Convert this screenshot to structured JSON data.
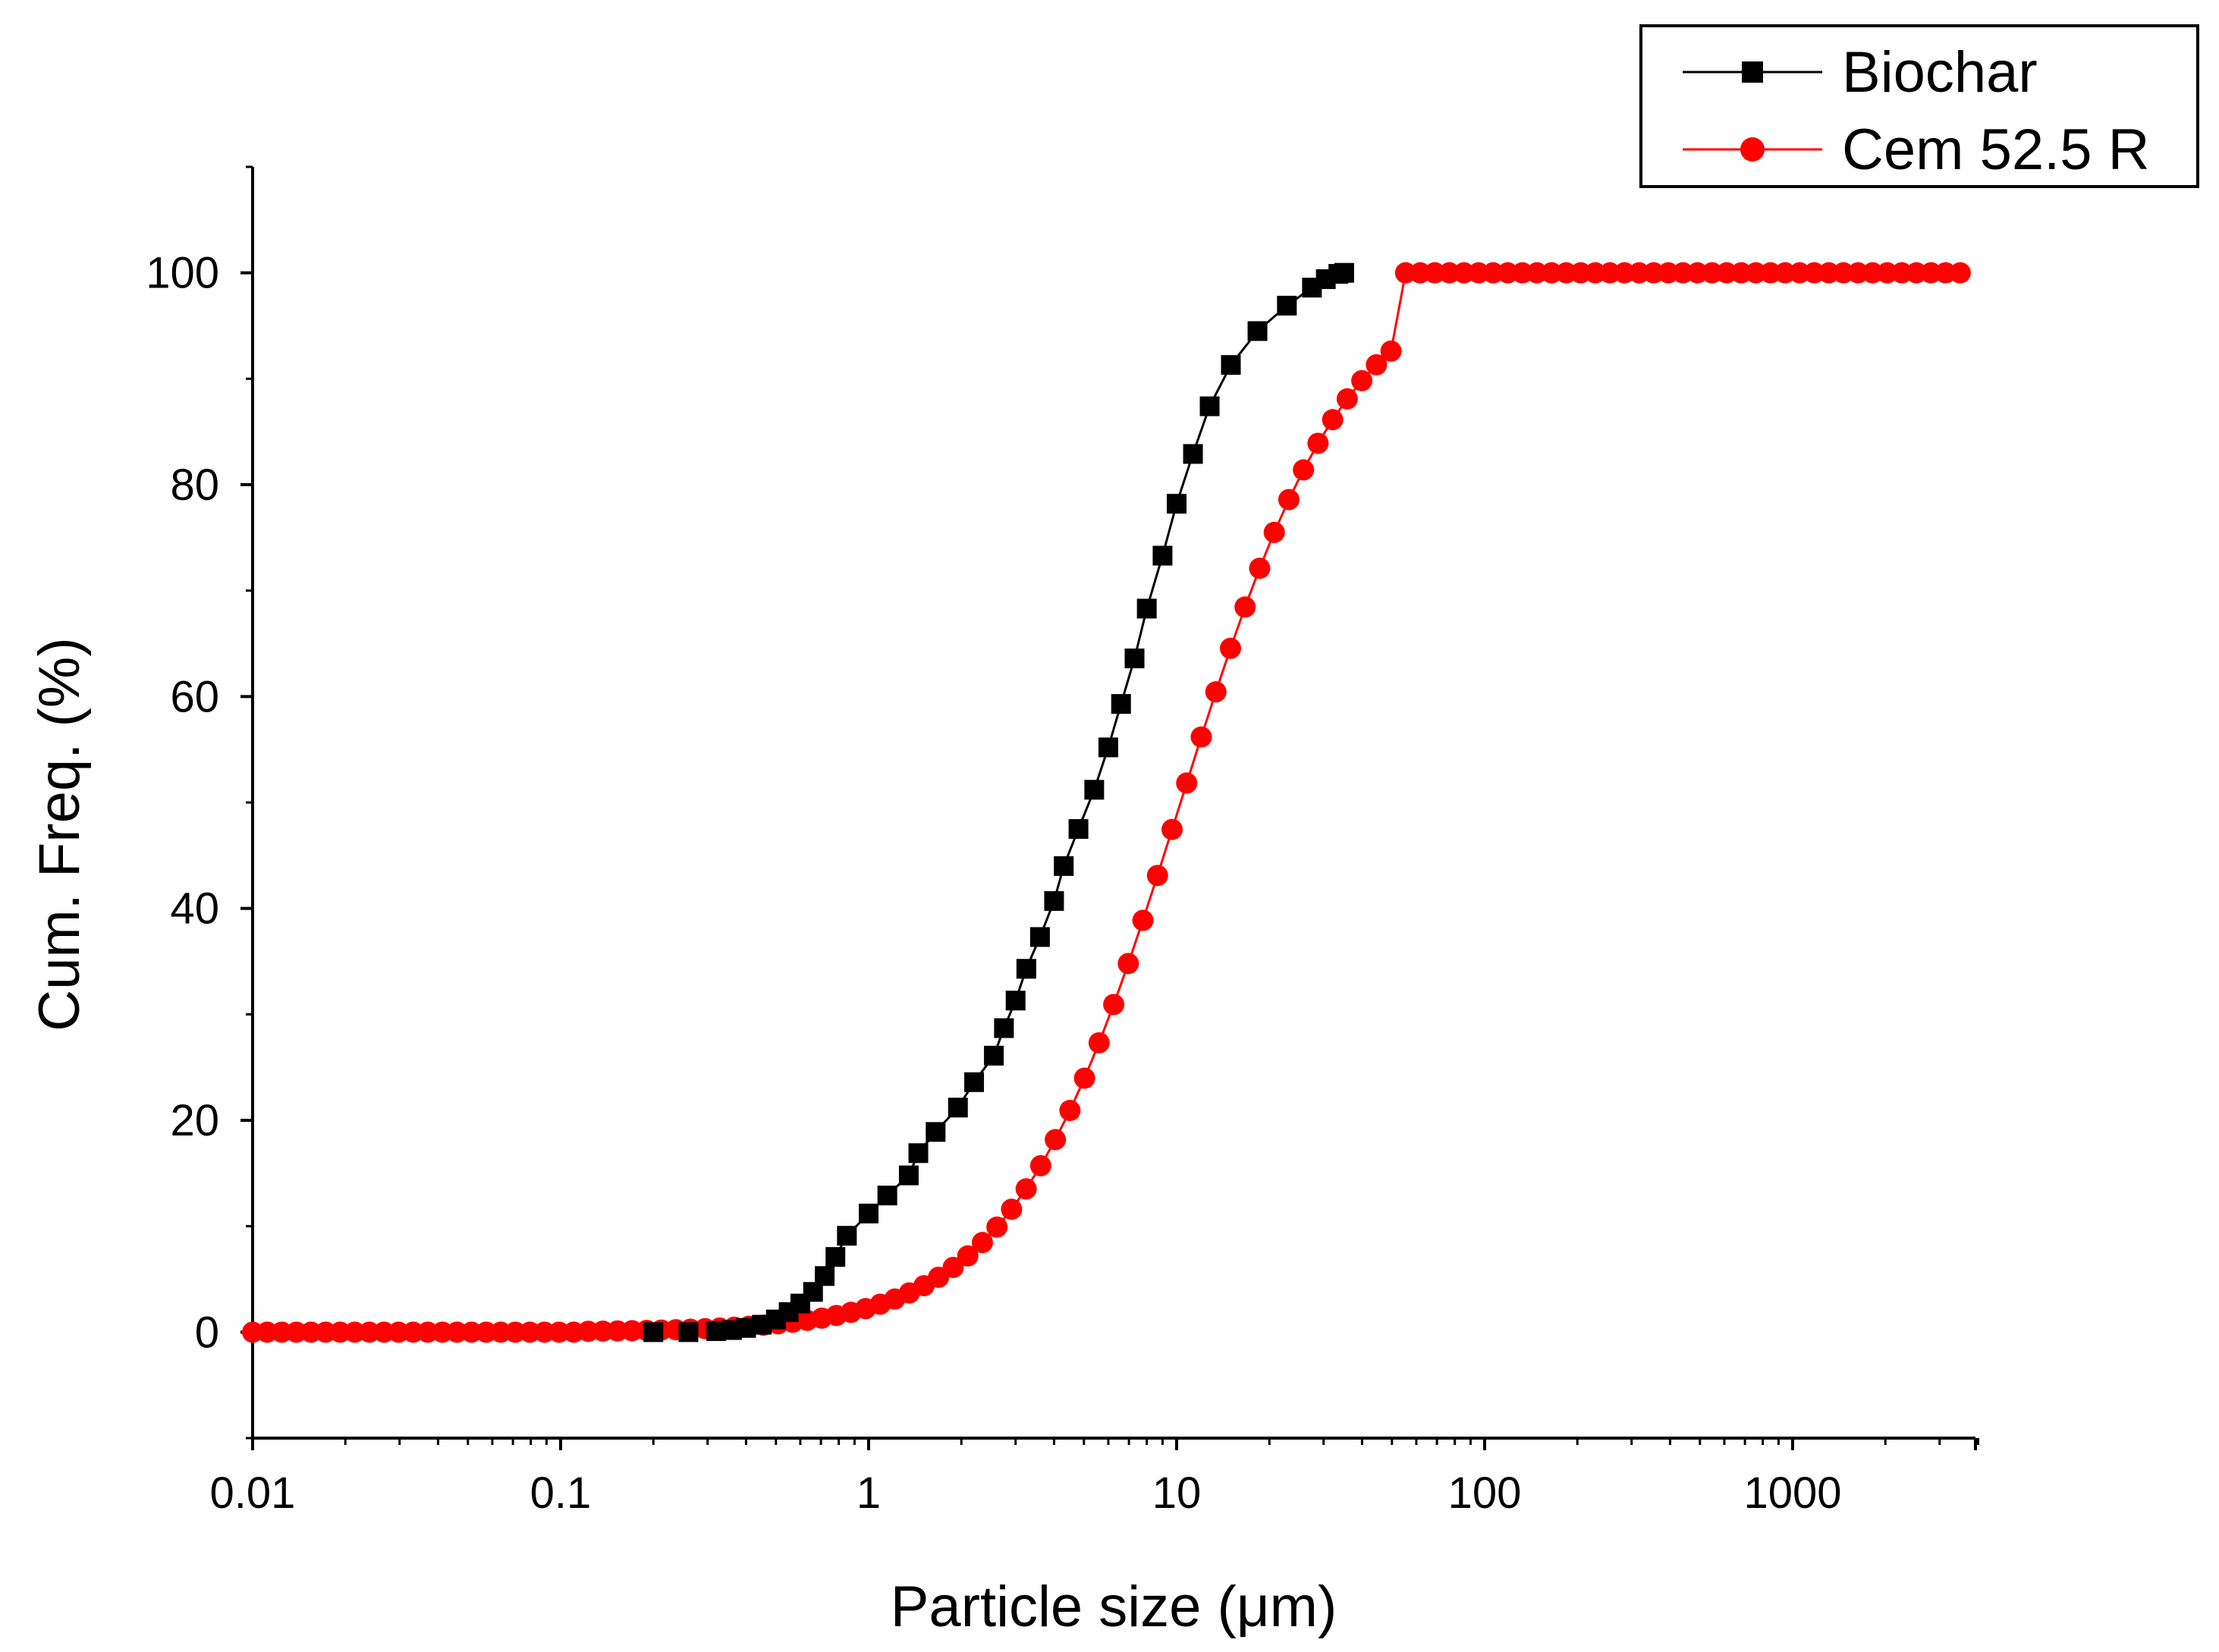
{
  "chart_data": {
    "type": "line",
    "title": "",
    "xlabel": "Particle size (μm)",
    "ylabel": "Cum. Freq. (%)",
    "xscale": "log",
    "xlim": [
      0.01,
      4000
    ],
    "ylim": [
      -10,
      110
    ],
    "x_ticks": [
      0.01,
      0.1,
      1,
      10,
      100,
      1000
    ],
    "x_tick_labels": [
      "0.01",
      "0.1",
      "1",
      "10",
      "100",
      "1000"
    ],
    "y_ticks": [
      0,
      20,
      40,
      60,
      80,
      100
    ],
    "y_tick_labels": [
      "0",
      "20",
      "40",
      "60",
      "80",
      "100"
    ],
    "legend": {
      "position": "top-right",
      "entries": [
        {
          "name": "Biochar",
          "marker": "square",
          "color": "#000000"
        },
        {
          "name": "Cem 52.5 R",
          "marker": "circle",
          "color": "#ff0000"
        }
      ]
    },
    "series": [
      {
        "name": "Biochar",
        "color": "#000000",
        "marker": "square",
        "points": [
          [
            0.2,
            0
          ],
          [
            0.26,
            0
          ],
          [
            0.32,
            0.1
          ],
          [
            0.36,
            0.2
          ],
          [
            0.4,
            0.4
          ],
          [
            0.45,
            0.7
          ],
          [
            0.5,
            1.2
          ],
          [
            0.55,
            1.9
          ],
          [
            0.6,
            2.7
          ],
          [
            0.66,
            3.8
          ],
          [
            0.72,
            5.3
          ],
          [
            0.78,
            7.1
          ],
          [
            0.85,
            9.1
          ],
          [
            1.0,
            11.2
          ],
          [
            1.15,
            12.9
          ],
          [
            1.35,
            14.8
          ],
          [
            1.45,
            16.9
          ],
          [
            1.65,
            18.9
          ],
          [
            1.95,
            21.2
          ],
          [
            2.2,
            23.6
          ],
          [
            2.55,
            26.1
          ],
          [
            2.75,
            28.7
          ],
          [
            3.0,
            31.3
          ],
          [
            3.25,
            34.3
          ],
          [
            3.6,
            37.3
          ],
          [
            4.0,
            40.7
          ],
          [
            4.3,
            44.0
          ],
          [
            4.8,
            47.5
          ],
          [
            5.4,
            51.2
          ],
          [
            6.0,
            55.2
          ],
          [
            6.6,
            59.3
          ],
          [
            7.3,
            63.6
          ],
          [
            8.0,
            68.3
          ],
          [
            9.0,
            73.3
          ],
          [
            10.0,
            78.2
          ],
          [
            11.3,
            82.9
          ],
          [
            12.8,
            87.4
          ],
          [
            15.0,
            91.3
          ],
          [
            18.3,
            94.5
          ],
          [
            22.8,
            96.9
          ],
          [
            27.5,
            98.6
          ],
          [
            30.5,
            99.4
          ],
          [
            33.5,
            99.9
          ],
          [
            35.0,
            100
          ]
        ]
      },
      {
        "name": "Cem 52.5 R",
        "color": "#ff0000",
        "marker": "circle",
        "points": "sigmoid"
      }
    ]
  }
}
